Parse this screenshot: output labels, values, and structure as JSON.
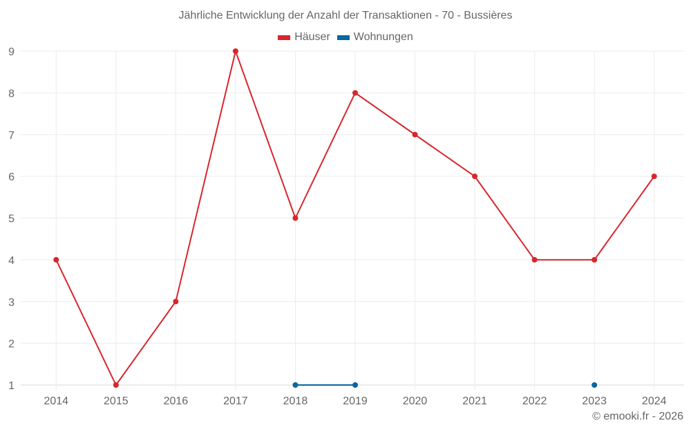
{
  "chart_data": {
    "type": "line",
    "title": "Jährliche Entwicklung der Anzahl der Transaktionen - 70 - Bussières",
    "xlabel": "",
    "ylabel": "",
    "categories": [
      "2014",
      "2015",
      "2016",
      "2017",
      "2018",
      "2019",
      "2020",
      "2021",
      "2022",
      "2023",
      "2024"
    ],
    "ylim": [
      1,
      9
    ],
    "yticks": [
      1,
      2,
      3,
      4,
      5,
      6,
      7,
      8,
      9
    ],
    "grid": true,
    "legend_position": "top",
    "series": [
      {
        "name": "Häuser",
        "color": "#d7262c",
        "values": [
          4,
          1,
          3,
          9,
          5,
          8,
          7,
          6,
          4,
          4,
          6
        ]
      },
      {
        "name": "Wohnungen",
        "color": "#0866a0",
        "values": [
          null,
          null,
          null,
          null,
          1,
          1,
          null,
          null,
          null,
          1,
          null
        ]
      }
    ]
  },
  "credit": "© emooki.fr - 2026"
}
